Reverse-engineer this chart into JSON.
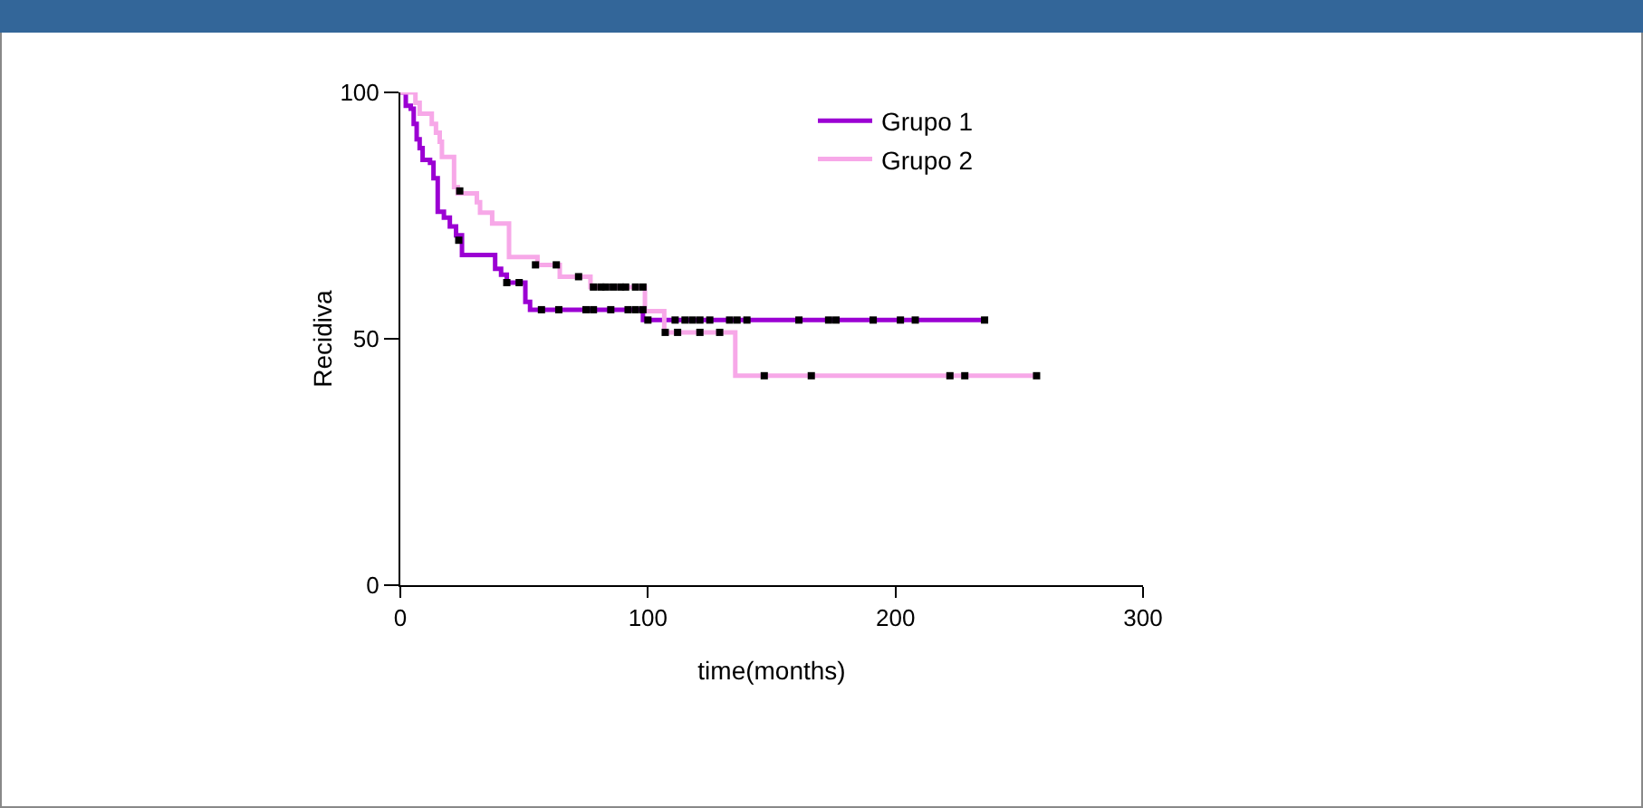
{
  "chart_data": {
    "type": "step",
    "xlabel": "time(months)",
    "ylabel": "Recidiva",
    "xlim": [
      0,
      300
    ],
    "xticks": [
      0,
      100,
      200,
      300
    ],
    "ylim": [
      0,
      100
    ],
    "yticks": [
      0,
      50,
      100
    ],
    "grid": false,
    "legend": "top right",
    "series": [
      {
        "name": "Grupo 1",
        "color": "#9b00d3",
        "x": [
          0,
          2.2,
          4.2,
          5.4,
          6.6,
          7.8,
          9,
          12,
          13.4,
          15.1,
          17.6,
          20,
          22.5,
          24.9,
          38.3,
          40.7,
          43,
          50.5,
          52.4,
          98,
          236
        ],
        "values": [
          100,
          97.3,
          96.7,
          93.6,
          90.5,
          88.7,
          86.3,
          85.7,
          82.6,
          75.8,
          74.6,
          72.8,
          71,
          67,
          64.2,
          63,
          61.4,
          57.5,
          55.9,
          53.8,
          53.8
        ]
      },
      {
        "name": "Grupo 2",
        "color": "#f7a8e8",
        "x": [
          0,
          6.1,
          7.8,
          12.7,
          14.4,
          15.9,
          16.8,
          21.7,
          23.2,
          30.9,
          32.2,
          37.1,
          43.9,
          55.4,
          64.4,
          76.8,
          98.8,
          106.6,
          135.3,
          256.8
        ],
        "values": [
          100,
          97.9,
          95.7,
          93.6,
          91.8,
          90,
          86.9,
          80.8,
          79.5,
          77.7,
          75.6,
          73.4,
          66.6,
          65,
          62.6,
          60.5,
          55.6,
          51.3,
          42.5,
          42.5
        ]
      },
      {
        "type": "scatter",
        "marker": "square",
        "color": "#000000",
        "x": [
          23.6,
          43,
          48,
          57,
          64,
          75,
          78,
          85,
          92,
          95,
          98,
          100,
          111,
          115,
          118,
          121,
          125,
          133,
          136,
          140,
          161,
          173,
          176,
          191,
          202,
          208,
          236
        ],
        "values": [
          70,
          61.4,
          61.4,
          55.9,
          55.9,
          55.9,
          55.9,
          55.9,
          55.9,
          55.9,
          55.9,
          53.8,
          53.8,
          53.8,
          53.8,
          53.8,
          53.8,
          53.8,
          53.8,
          53.8,
          53.8,
          53.8,
          53.8,
          53.8,
          53.8,
          53.8,
          53.8
        ]
      },
      {
        "type": "scatter",
        "marker": "square",
        "color": "#000000",
        "x": [
          24,
          54.6,
          63,
          72,
          78,
          81,
          83,
          86,
          89,
          91,
          95,
          98,
          107,
          112,
          121,
          129,
          147,
          166,
          222,
          228,
          257
        ],
        "values": [
          80,
          65,
          65,
          62.6,
          60.5,
          60.5,
          60.5,
          60.5,
          60.5,
          60.5,
          60.5,
          60.5,
          51.3,
          51.3,
          51.3,
          51.3,
          42.5,
          42.5,
          42.5,
          42.5,
          42.5
        ]
      }
    ]
  }
}
